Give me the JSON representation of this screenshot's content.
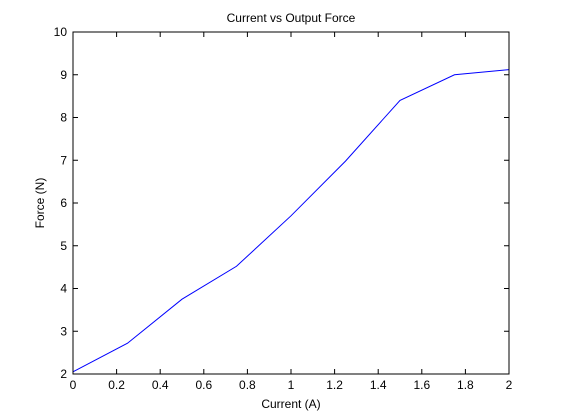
{
  "chart_data": {
    "type": "line",
    "title": "Current vs Output Force",
    "xlabel": "Current (A)",
    "ylabel": "Force (N)",
    "xlim": [
      0,
      2
    ],
    "ylim": [
      2,
      10
    ],
    "xticks": [
      "0",
      "0.2",
      "0.4",
      "0.6",
      "0.8",
      "1",
      "1.2",
      "1.4",
      "1.6",
      "1.8",
      "2"
    ],
    "yticks": [
      "2",
      "3",
      "4",
      "5",
      "6",
      "7",
      "8",
      "9",
      "10"
    ],
    "grid": false,
    "legend": false,
    "series": [
      {
        "color": "#0000ff",
        "x": [
          0,
          0.25,
          0.5,
          0.75,
          1.0,
          1.25,
          1.5,
          1.75,
          2.0
        ],
        "y": [
          2.05,
          2.72,
          3.75,
          4.52,
          5.7,
          6.98,
          8.4,
          9.0,
          9.12
        ]
      }
    ]
  }
}
